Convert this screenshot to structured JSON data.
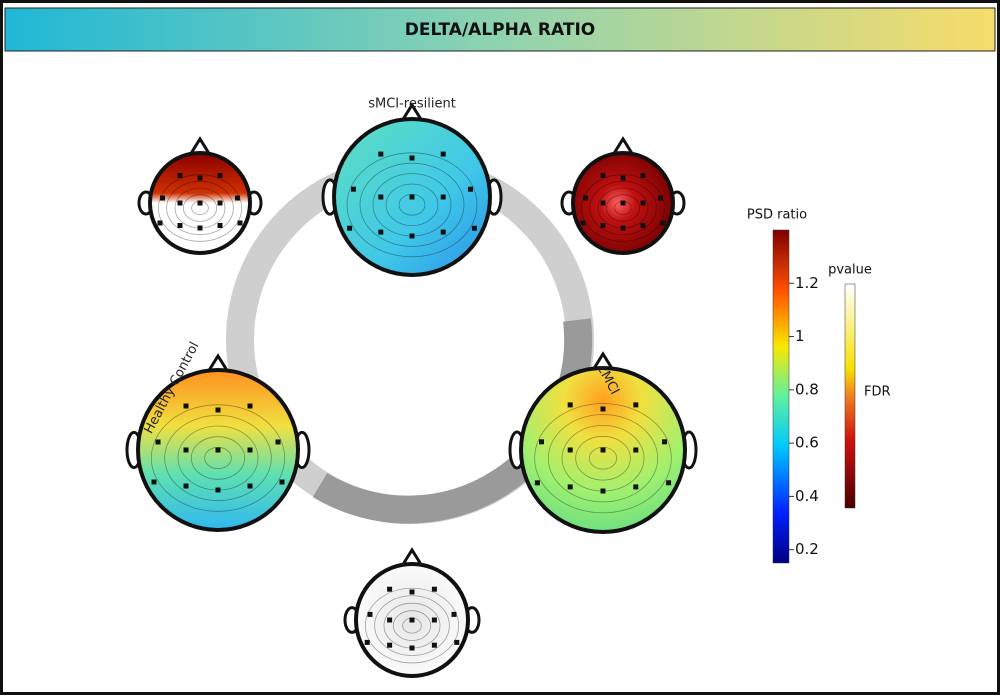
{
  "header": {
    "title": "DELTA/ALPHA RATIO"
  },
  "groups": [
    {
      "label": "sMCI-resilient"
    },
    {
      "label": "Healthy Control"
    },
    {
      "label": "cMCI"
    }
  ],
  "colorbar": {
    "title": "PSD ratio",
    "lim": [
      0.15,
      1.4
    ],
    "ticks": [
      0.2,
      0.4,
      0.6,
      0.8,
      1,
      1.2
    ]
  },
  "pvalue_bar": {
    "title": "pvalue",
    "label": "FDR"
  }
}
